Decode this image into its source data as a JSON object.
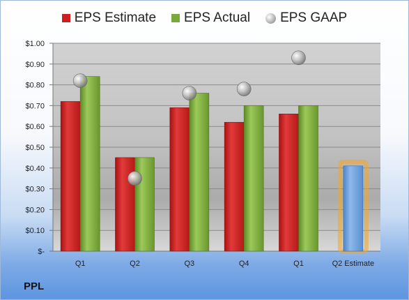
{
  "chart_data": {
    "type": "bar",
    "categories": [
      "Q1",
      "Q2",
      "Q3",
      "Q4",
      "Q1",
      "Q2 Estimate"
    ],
    "series": [
      {
        "name": "EPS Estimate",
        "values": [
          0.72,
          0.45,
          0.69,
          0.62,
          0.66,
          null
        ],
        "color": "#cc1f1f"
      },
      {
        "name": "EPS Actual",
        "values": [
          0.84,
          0.45,
          0.76,
          0.7,
          0.7,
          null
        ],
        "color": "#7aa83a"
      },
      {
        "name": "EPS GAAP",
        "values": [
          0.82,
          0.35,
          0.76,
          0.78,
          0.93,
          null
        ],
        "color": "#a0a0a0"
      },
      {
        "values": [
          null,
          null,
          null,
          null,
          null,
          0.41
        ],
        "color": "#6f9fd8"
      }
    ],
    "ylim": [
      0,
      1.0
    ],
    "yticks": [
      0,
      0.1,
      0.2,
      0.3,
      0.4,
      0.5,
      0.6,
      0.7,
      0.8,
      0.9,
      1.0
    ],
    "ytick_labels": [
      "$-",
      "$0.10",
      "$0.20",
      "$0.30",
      "$0.40",
      "$0.50",
      "$0.60",
      "$0.70",
      "$0.80",
      "$0.90",
      "$1.00"
    ],
    "grid": true,
    "legend_position": "top",
    "ticker": "PPL"
  },
  "colors": {
    "estimate": "#cc1f1f",
    "actual": "#7aa83a",
    "projection": "#6f9fd8",
    "projection_glow": "#f5a623"
  }
}
